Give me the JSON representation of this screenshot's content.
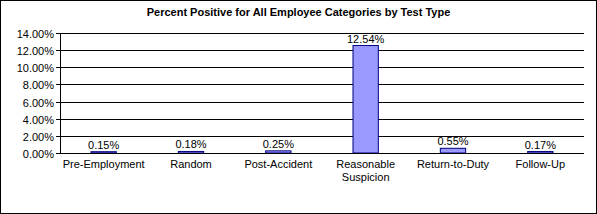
{
  "chart_data": {
    "type": "bar",
    "title": "Percent Positive for All Employee Categories by Test Type",
    "categories": [
      "Pre-Employment",
      "Random",
      "Post-Accident",
      "Reasonable Suspicion",
      "Return-to-Duty",
      "Follow-Up"
    ],
    "values": [
      0.15,
      0.18,
      0.25,
      12.54,
      0.55,
      0.17
    ],
    "value_labels": [
      "0.15%",
      "0.18%",
      "0.25%",
      "12.54%",
      "0.55%",
      "0.17%"
    ],
    "color": "#9999ff",
    "ylim": [
      0,
      14
    ],
    "yticks": [
      {
        "value": 0,
        "label": "0.00%"
      },
      {
        "value": 2,
        "label": "2.00%"
      },
      {
        "value": 4,
        "label": "4.00%"
      },
      {
        "value": 6,
        "label": "6.00%"
      },
      {
        "value": 8,
        "label": "8.00%"
      },
      {
        "value": 10,
        "label": "10.00%"
      },
      {
        "value": 12,
        "label": "12.00%"
      },
      {
        "value": 14,
        "label": "14.00%"
      }
    ],
    "grid": true,
    "data_labels": true
  }
}
